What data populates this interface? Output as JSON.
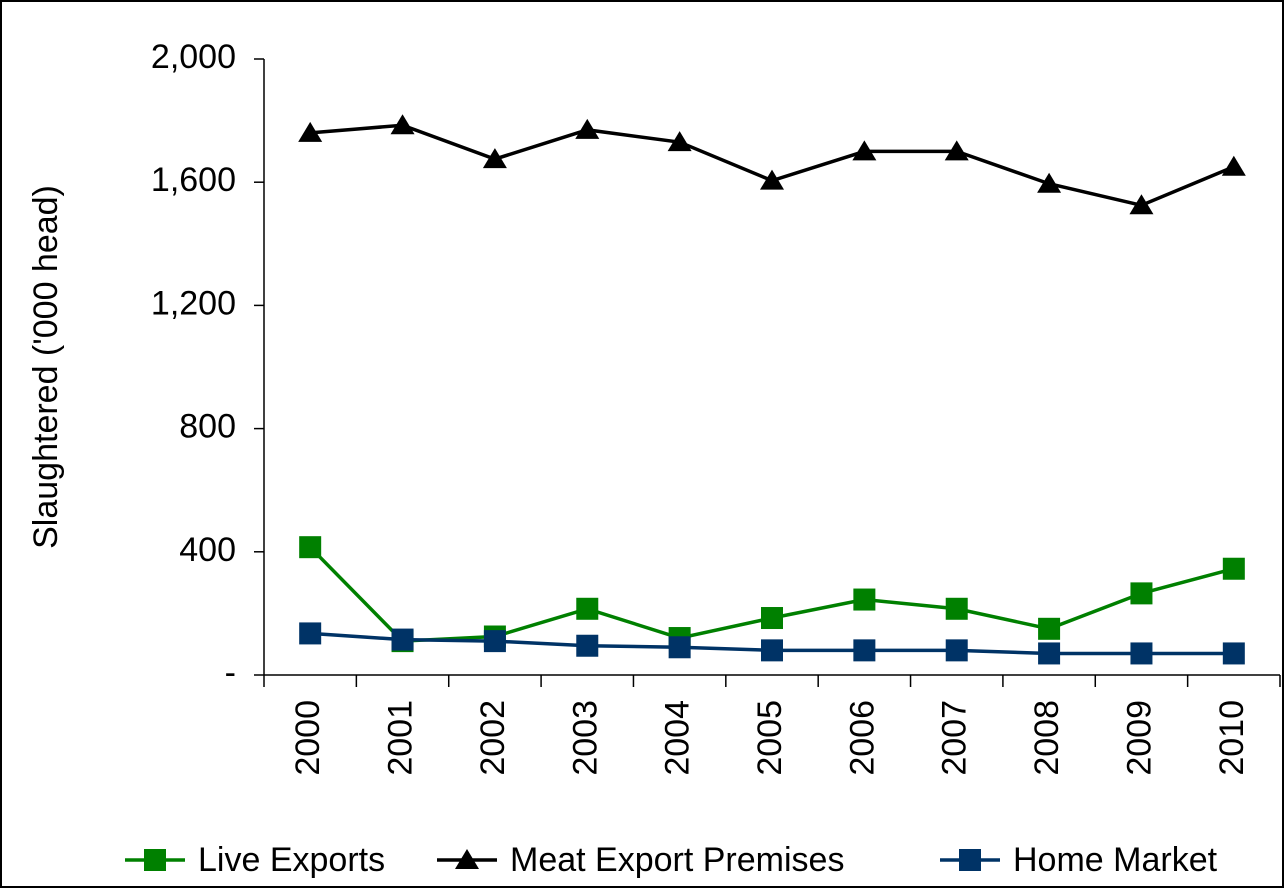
{
  "chart_data": {
    "type": "line",
    "y_label": "Slaughtered ('000 head)",
    "categories": [
      "2000",
      "2001",
      "2002",
      "2003",
      "2004",
      "2005",
      "2006",
      "2007",
      "2008",
      "2009",
      "2010"
    ],
    "series": [
      {
        "name": "Live Exports",
        "color": "#008000",
        "marker": "square",
        "values": [
          415,
          110,
          125,
          215,
          120,
          185,
          245,
          215,
          150,
          265,
          345
        ]
      },
      {
        "name": "Meat Export Premises",
        "color": "#000000",
        "marker": "triangle",
        "values": [
          1760,
          1785,
          1675,
          1770,
          1730,
          1605,
          1700,
          1700,
          1595,
          1525,
          1650
        ]
      },
      {
        "name": "Home Market",
        "color": "#003366",
        "marker": "square",
        "values": [
          135,
          115,
          110,
          95,
          90,
          80,
          80,
          80,
          70,
          70,
          70
        ]
      }
    ],
    "ylim": [
      0,
      2000
    ],
    "yticks": [
      {
        "value": 0,
        "label": "-"
      },
      400,
      800,
      {
        "value": 1200,
        "label": "1,200"
      },
      {
        "value": 1600,
        "label": "1,600"
      },
      {
        "value": 2000,
        "label": "2,000"
      }
    ],
    "legend": "bottom"
  }
}
